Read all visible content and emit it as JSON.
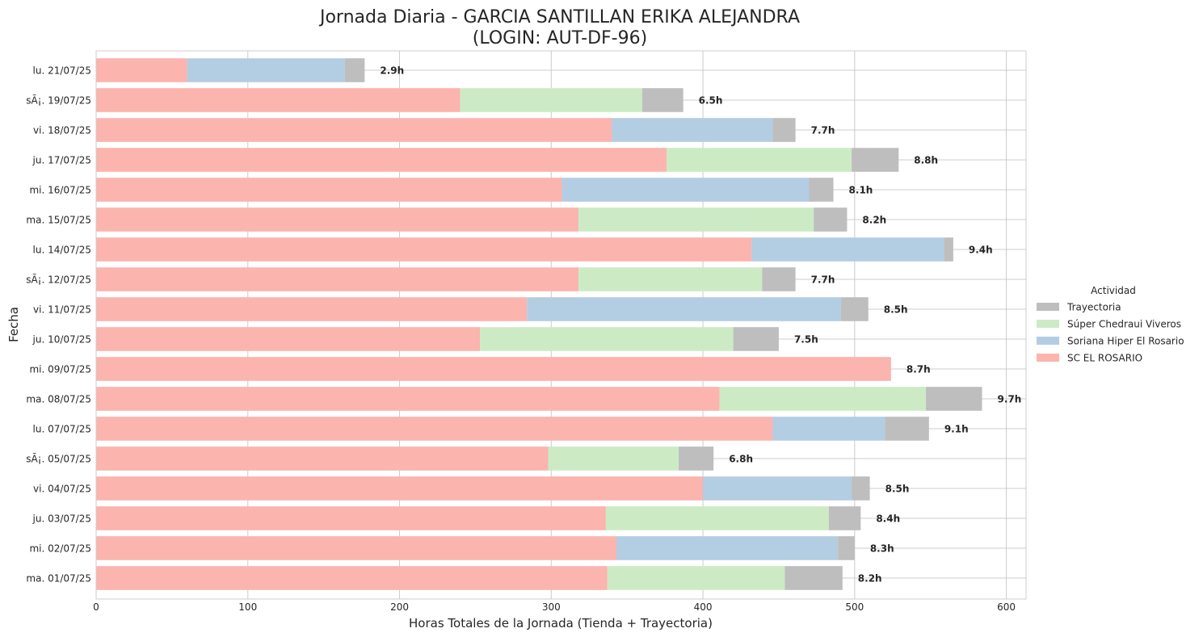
{
  "chart_data": {
    "type": "bar",
    "orientation": "horizontal",
    "stacked": true,
    "title_line1": "Jornada Diaria - GARCIA SANTILLAN ERIKA ALEJANDRA",
    "title_line2": "(LOGIN: AUT-DF-96)",
    "xlabel": "Horas Totales de la Jornada (Tienda + Trayectoria)",
    "ylabel": "Fecha",
    "xlim": [
      0,
      613
    ],
    "xticks": [
      0,
      100,
      200,
      300,
      400,
      500,
      600
    ],
    "grid": true,
    "legend": {
      "title": "Actividad",
      "placement": "center-right",
      "entries": [
        {
          "name": "Trayectoria",
          "color": "#bebebe"
        },
        {
          "name": "Súper Chedraui Viveros",
          "color": "#ccebc5"
        },
        {
          "name": "Soriana Hiper El Rosario",
          "color": "#b3cde3"
        },
        {
          "name": "SC EL ROSARIO",
          "color": "#fbb4ae"
        }
      ]
    },
    "categories": [
      "lu. 21/07/25",
      "sÃ¡. 19/07/25",
      "vi. 18/07/25",
      "ju. 17/07/25",
      "mi. 16/07/25",
      "ma. 15/07/25",
      "lu. 14/07/25",
      "sÃ¡. 12/07/25",
      "vi. 11/07/25",
      "ju. 10/07/25",
      "mi. 09/07/25",
      "ma. 08/07/25",
      "lu. 07/07/25",
      "sÃ¡. 05/07/25",
      "vi. 04/07/25",
      "ju. 03/07/25",
      "mi. 02/07/25",
      "ma. 01/07/25"
    ],
    "series": [
      {
        "name": "SC EL ROSARIO",
        "color": "#fbb4ae",
        "values": [
          60,
          240,
          340,
          376,
          307,
          318,
          432,
          318,
          284,
          253,
          524,
          411,
          446,
          298,
          400,
          336,
          343,
          337
        ]
      },
      {
        "name": "Soriana Hiper El Rosario",
        "color": "#b3cde3",
        "values": [
          104,
          0,
          106,
          0,
          163,
          0,
          127,
          0,
          207,
          0,
          0,
          0,
          74,
          0,
          98,
          0,
          146,
          0
        ]
      },
      {
        "name": "Súper Chedraui Viveros",
        "color": "#ccebc5",
        "values": [
          0,
          120,
          0,
          122,
          0,
          155,
          0,
          121,
          0,
          167,
          0,
          136,
          0,
          86,
          0,
          147,
          0,
          117
        ]
      },
      {
        "name": "Trayectoria",
        "color": "#bebebe",
        "values": [
          13,
          27,
          15,
          31,
          16,
          22,
          6,
          22,
          18,
          30,
          0,
          37,
          29,
          23,
          12,
          21,
          11,
          38
        ]
      }
    ],
    "total_labels": [
      "2.9h",
      "6.5h",
      "7.7h",
      "8.8h",
      "8.1h",
      "8.2h",
      "9.4h",
      "7.7h",
      "8.5h",
      "7.5h",
      "8.7h",
      "9.7h",
      "9.1h",
      "6.8h",
      "8.5h",
      "8.4h",
      "8.3h",
      "8.2h"
    ]
  }
}
